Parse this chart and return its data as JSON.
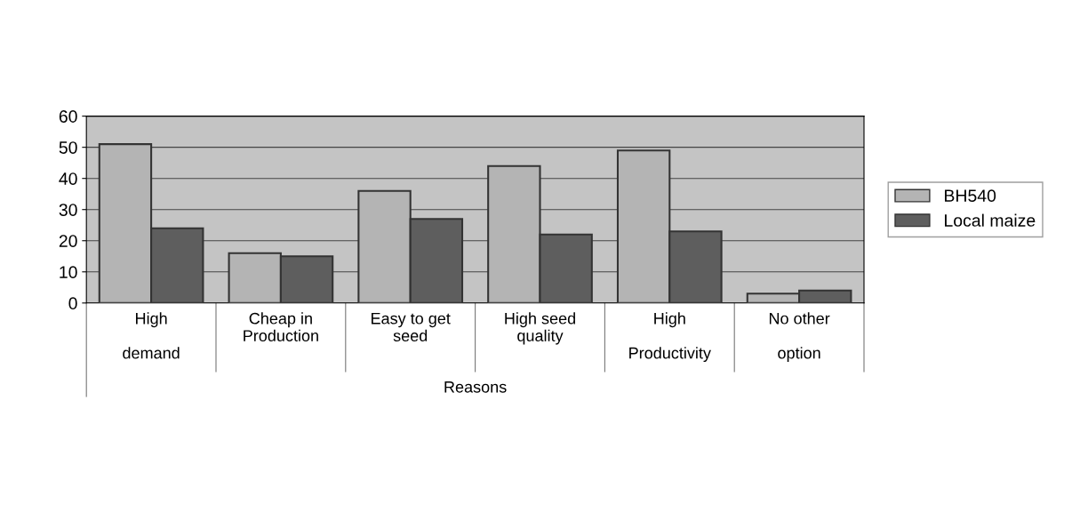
{
  "chart_data": {
    "type": "bar",
    "xlabel": "Reasons",
    "categories": [
      "High\n\ndemand",
      "Cheap in\nProduction",
      "Easy to get\nseed",
      "High seed\nquality",
      "High\n\nProductivity",
      "No other\n\noption"
    ],
    "series": [
      {
        "name": "BH540",
        "color": "#b4b4b4",
        "values": [
          51,
          16,
          36,
          44,
          49,
          3
        ]
      },
      {
        "name": "Local maize",
        "color": "#5e5e5e",
        "values": [
          24,
          15,
          27,
          22,
          23,
          4
        ]
      }
    ],
    "ylim": [
      0,
      60
    ],
    "yticks": [
      0,
      10,
      20,
      30,
      40,
      50,
      60
    ],
    "grid": "y",
    "legend": "right"
  }
}
